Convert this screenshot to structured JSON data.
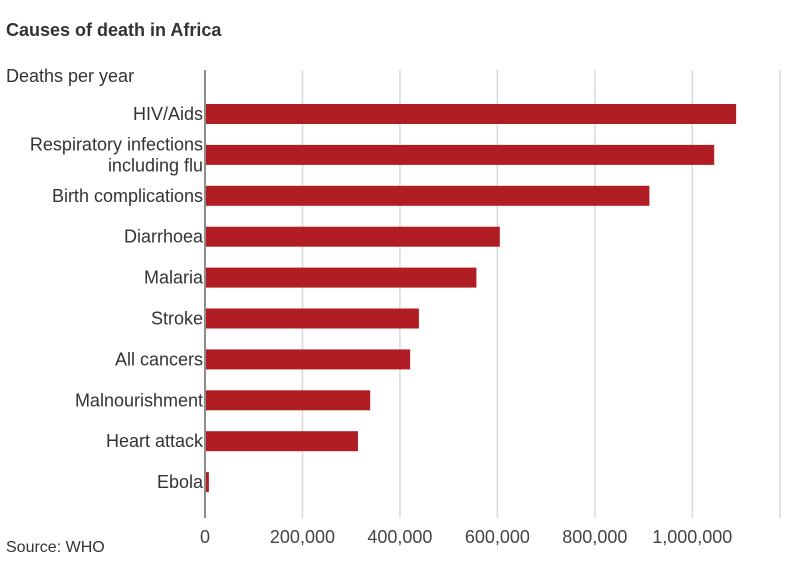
{
  "chart_data": {
    "type": "bar",
    "orientation": "horizontal",
    "title": "Causes of death in Africa",
    "subtitle": "Deaths per year",
    "source": "Source: WHO",
    "categories": [
      [
        "HIV/Aids"
      ],
      [
        "Respiratory infections",
        "including flu"
      ],
      [
        "Birth complications"
      ],
      [
        "Diarrhoea"
      ],
      [
        "Malaria"
      ],
      [
        "Stroke"
      ],
      [
        "All cancers"
      ],
      [
        "Malnourishment"
      ],
      [
        "Heart attack"
      ],
      [
        "Ebola"
      ]
    ],
    "values": [
      1090000,
      1045000,
      912000,
      605000,
      557000,
      439000,
      421000,
      339000,
      314000,
      8000
    ],
    "xlim": [
      0,
      1180000
    ],
    "ticks": [
      0,
      200000,
      400000,
      600000,
      800000,
      1000000
    ],
    "tick_labels": [
      "0",
      "200,000",
      "400,000",
      "600,000",
      "800,000",
      "1,000,000"
    ],
    "grid": true,
    "bar_color": "#b01e23",
    "grid_color": "#d9d9d9",
    "axis_color": "#8c8c8c"
  }
}
